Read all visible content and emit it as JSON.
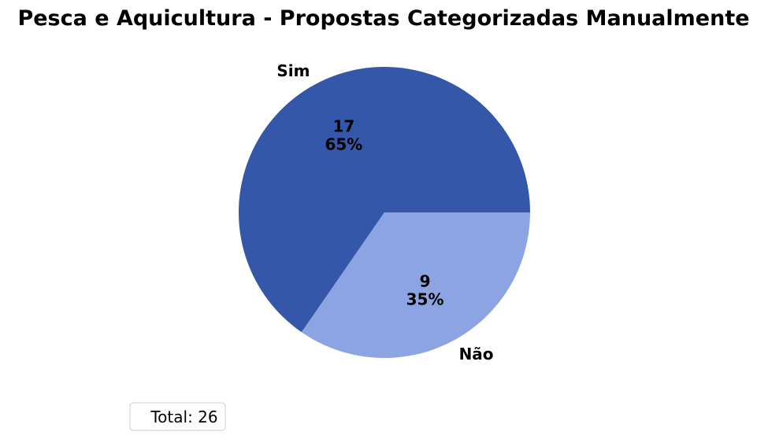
{
  "chart_data": {
    "type": "pie",
    "title": "Pesca e Aquicultura - Propostas Categorizadas Manualmente",
    "slices": [
      {
        "label": "Sim",
        "value": 17,
        "percent": "65%",
        "color": "#3557a9"
      },
      {
        "label": "Não",
        "value": 9,
        "percent": "35%",
        "color": "#8da4e2"
      }
    ],
    "start_angle_deg": 0,
    "direction": "counterclockwise",
    "legend": {
      "text": "Total: 26",
      "placement": "lower-left"
    }
  }
}
